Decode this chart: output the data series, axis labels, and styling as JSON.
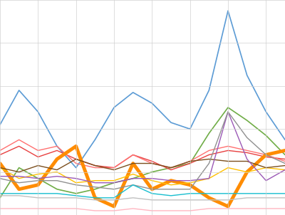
{
  "figsize": [
    4.0,
    3.02
  ],
  "dpi": 100,
  "background_color": "#ffffff",
  "grid_color": "#d0d0d0",
  "lines": [
    {
      "color": "#5b9bd5",
      "linewidth": 1.2,
      "values": [
        0.42,
        0.58,
        0.48,
        0.32,
        0.22,
        0.35,
        0.5,
        0.57,
        0.52,
        0.43,
        0.4,
        0.58,
        0.95,
        0.65,
        0.48,
        0.35
      ]
    },
    {
      "color": "#70ad47",
      "linewidth": 1.2,
      "values": [
        0.08,
        0.22,
        0.17,
        0.12,
        0.1,
        0.12,
        0.15,
        0.17,
        0.2,
        0.22,
        0.24,
        0.38,
        0.5,
        0.44,
        0.37,
        0.28
      ]
    },
    {
      "color": "#e84040",
      "linewidth": 1.0,
      "values": [
        0.28,
        0.32,
        0.27,
        0.3,
        0.26,
        0.23,
        0.22,
        0.28,
        0.25,
        0.21,
        0.24,
        0.28,
        0.3,
        0.29,
        0.27,
        0.26
      ]
    },
    {
      "color": "#ff7070",
      "linewidth": 1.0,
      "values": [
        0.3,
        0.35,
        0.3,
        0.32,
        0.24,
        0.22,
        0.22,
        0.28,
        0.24,
        0.22,
        0.25,
        0.3,
        0.32,
        0.3,
        0.28,
        0.25
      ]
    },
    {
      "color": "#ff8c00",
      "linewidth": 3.5,
      "values": [
        0.24,
        0.12,
        0.14,
        0.26,
        0.32,
        0.08,
        0.04,
        0.24,
        0.12,
        0.16,
        0.14,
        0.08,
        0.04,
        0.2,
        0.28,
        0.3
      ]
    },
    {
      "color": "#ffc000",
      "linewidth": 1.0,
      "values": [
        0.22,
        0.17,
        0.19,
        0.2,
        0.15,
        0.16,
        0.16,
        0.19,
        0.16,
        0.14,
        0.15,
        0.17,
        0.22,
        0.2,
        0.22,
        0.21
      ]
    },
    {
      "color": "#7b4f1e",
      "linewidth": 1.0,
      "values": [
        0.22,
        0.2,
        0.23,
        0.21,
        0.26,
        0.23,
        0.21,
        0.24,
        0.24,
        0.22,
        0.25,
        0.26,
        0.25,
        0.25,
        0.22,
        0.23
      ]
    },
    {
      "color": "#9b59b6",
      "linewidth": 1.0,
      "values": [
        0.18,
        0.18,
        0.17,
        0.18,
        0.17,
        0.15,
        0.15,
        0.17,
        0.17,
        0.16,
        0.16,
        0.17,
        0.48,
        0.26,
        0.16,
        0.21
      ]
    },
    {
      "color": "#909090",
      "linewidth": 1.0,
      "values": [
        0.17,
        0.15,
        0.16,
        0.16,
        0.14,
        0.13,
        0.12,
        0.14,
        0.12,
        0.12,
        0.12,
        0.24,
        0.48,
        0.36,
        0.28,
        0.24
      ]
    },
    {
      "color": "#17becf",
      "linewidth": 1.0,
      "values": [
        0.1,
        0.1,
        0.1,
        0.1,
        0.09,
        0.08,
        0.08,
        0.14,
        0.1,
        0.09,
        0.1,
        0.1,
        0.1,
        0.1,
        0.1,
        0.1
      ]
    },
    {
      "color": "#c0c0c0",
      "linewidth": 1.0,
      "values": [
        0.09,
        0.09,
        0.08,
        0.08,
        0.08,
        0.07,
        0.07,
        0.08,
        0.07,
        0.07,
        0.07,
        0.07,
        0.07,
        0.08,
        0.08,
        0.08
      ]
    },
    {
      "color": "#ffb6c1",
      "linewidth": 1.0,
      "values": [
        0.03,
        0.03,
        0.03,
        0.03,
        0.03,
        0.02,
        0.02,
        0.03,
        0.02,
        0.02,
        0.02,
        0.03,
        0.03,
        0.03,
        0.03,
        0.03
      ]
    }
  ],
  "ylim": [
    0.0,
    1.0
  ],
  "xlim": [
    0,
    15
  ]
}
